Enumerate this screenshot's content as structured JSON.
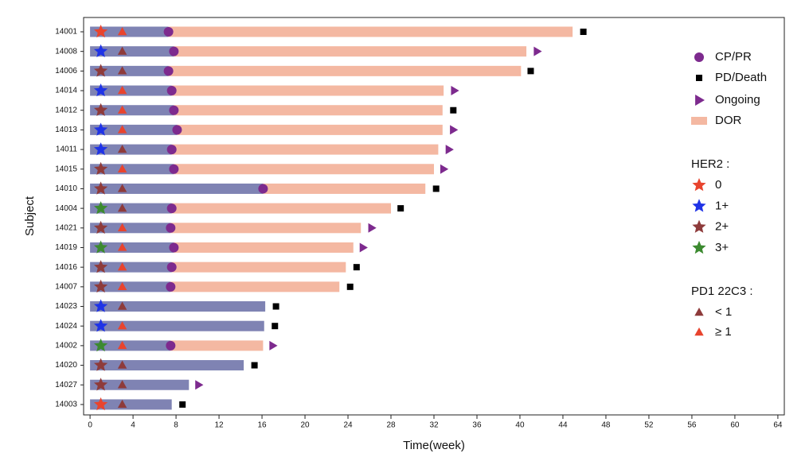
{
  "chart_data": {
    "type": "swimmer",
    "x_label": "Time(week)",
    "y_label": "Subject",
    "xlim": [
      -0.6,
      64.6
    ],
    "xticks": [
      0,
      4,
      8,
      12,
      16,
      20,
      24,
      28,
      32,
      36,
      40,
      44,
      48,
      52,
      56,
      60,
      64
    ],
    "categories": [
      "14001",
      "14008",
      "14006",
      "14014",
      "14012",
      "14013",
      "14011",
      "14015",
      "14010",
      "14004",
      "14021",
      "14019",
      "14016",
      "14007",
      "14023",
      "14024",
      "14002",
      "14020",
      "14027",
      "14003"
    ],
    "treatment_color": "#7f83b3",
    "series": [
      {
        "name": "CP/PR",
        "color": "#7d2a8e",
        "values": [
          7.3,
          7.8,
          7.3,
          7.6,
          7.8,
          8.1,
          7.6,
          7.8,
          16.1,
          7.6,
          7.5,
          7.8,
          7.6,
          7.5,
          null,
          null,
          7.5,
          null,
          null,
          null
        ]
      },
      {
        "name": "PD/Death",
        "color": "#000000",
        "values": [
          45.9,
          null,
          41.0,
          null,
          33.8,
          null,
          null,
          null,
          32.2,
          28.9,
          null,
          null,
          24.8,
          24.2,
          17.3,
          17.2,
          null,
          15.3,
          null,
          8.6
        ]
      },
      {
        "name": "Ongoing",
        "color": "#7d2a8e",
        "values": [
          null,
          41.6,
          null,
          33.9,
          null,
          33.8,
          33.4,
          32.9,
          null,
          null,
          26.2,
          25.4,
          null,
          null,
          null,
          null,
          17.0,
          null,
          10.1,
          null
        ]
      },
      {
        "name": "DOR",
        "color": "#f4b8a2",
        "values": [
          44.9,
          40.6,
          40.1,
          32.9,
          32.8,
          32.8,
          32.4,
          32.0,
          31.2,
          28.0,
          25.2,
          24.5,
          23.8,
          23.2,
          16.3,
          16.2,
          16.1,
          14.3,
          9.2,
          7.6
        ]
      }
    ],
    "her2": {
      "title": "HER2 :",
      "marker_x": 1,
      "levels": [
        {
          "label": "0",
          "color": "#e8442e"
        },
        {
          "label": "1+",
          "color": "#1f33e6"
        },
        {
          "label": "2+",
          "color": "#8e3b3b"
        },
        {
          "label": "3+",
          "color": "#3c8a30"
        }
      ],
      "values": [
        "0",
        "1+",
        "2+",
        "1+",
        "2+",
        "1+",
        "1+",
        "2+",
        "2+",
        "3+",
        "2+",
        "3+",
        "2+",
        "2+",
        "1+",
        "1+",
        "3+",
        "2+",
        "2+",
        "0"
      ]
    },
    "pd1": {
      "title": "PD1 22C3 :",
      "marker_x": 3,
      "levels": [
        {
          "label": "< 1",
          "color": "#8e3b3b"
        },
        {
          "label": "≥ 1",
          "color": "#e8442e"
        }
      ],
      "values": [
        "≥ 1",
        "< 1",
        "< 1",
        "≥ 1",
        "≥ 1",
        "≥ 1",
        "< 1",
        "≥ 1",
        "< 1",
        "< 1",
        "≥ 1",
        "≥ 1",
        "≥ 1",
        "≥ 1",
        "< 1",
        "≥ 1",
        "≥ 1",
        "< 1",
        "< 1",
        "< 1"
      ]
    }
  }
}
